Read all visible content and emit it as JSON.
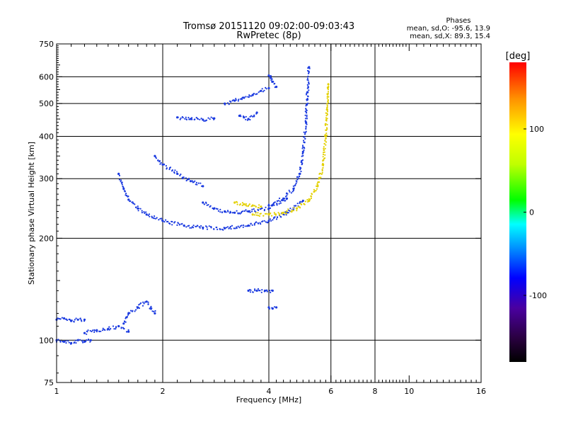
{
  "chart_data": {
    "type": "scatter",
    "title": "Tromsø 20151120 09:02:00-09:03:43",
    "subtitle": "RwPretec (8p)",
    "xlabel": "Frequency [MHz]",
    "ylabel": "Stationary phase Virtual Height [km]",
    "xscale": "log",
    "yscale": "log",
    "xlim": [
      1,
      16
    ],
    "ylim": [
      75,
      750
    ],
    "xticks": [
      1,
      2,
      4,
      6,
      8,
      10,
      16
    ],
    "xtick_labels": [
      "1",
      "2",
      "4",
      "6",
      "8",
      "10",
      "16"
    ],
    "yticks": [
      75,
      100,
      200,
      300,
      400,
      500,
      600,
      750
    ],
    "ytick_labels": [
      "75",
      "100",
      "200",
      "300",
      "400",
      "500",
      "600",
      "750"
    ],
    "grid": true,
    "grid_x": [
      1,
      2,
      4,
      6,
      8,
      16
    ],
    "grid_y": [
      100,
      200,
      300,
      400,
      500,
      600
    ],
    "phase_note": {
      "title": "Phases",
      "line1": "mean, sd,O: -95.6, 13.9",
      "line2": "mean, sd,X:  89.3, 15.4"
    },
    "colorbar": {
      "label": "[deg]",
      "range": [
        -180,
        180
      ],
      "ticks": [
        -100,
        0,
        100
      ],
      "tick_labels": [
        "-100",
        "0",
        "100"
      ]
    },
    "series": [
      {
        "name": "O",
        "color": "#1a3ae0",
        "phase_mean": -95.6,
        "traces": [
          {
            "x": [
              1.0,
              1.05,
              1.1,
              1.15,
              1.2,
              1.25
            ],
            "y": [
              100,
              99,
              98,
              100,
              99,
              100
            ]
          },
          {
            "x": [
              1.0,
              1.05,
              1.1,
              1.15,
              1.2
            ],
            "y": [
              115,
              116,
              114,
              115,
              115
            ]
          },
          {
            "x": [
              1.2,
              1.3,
              1.4,
              1.5,
              1.6
            ],
            "y": [
              105,
              107,
              108,
              110,
              106
            ]
          },
          {
            "x": [
              1.55,
              1.6,
              1.7,
              1.8,
              1.9
            ],
            "y": [
              112,
              120,
              125,
              130,
              120
            ]
          },
          {
            "x": [
              1.5,
              1.55,
              1.6,
              1.7,
              1.8,
              2.0,
              2.3,
              2.6,
              3.0,
              3.5,
              4.0,
              4.5,
              5.0
            ],
            "y": [
              310,
              280,
              260,
              245,
              235,
              225,
              218,
              215,
              214,
              218,
              225,
              238,
              258
            ]
          },
          {
            "x": [
              1.9,
              2.0,
              2.2,
              2.4,
              2.6
            ],
            "y": [
              350,
              330,
              310,
              295,
              285
            ]
          },
          {
            "x": [
              2.6,
              2.8,
              3.0,
              3.2,
              3.5,
              4.0,
              4.5
            ],
            "y": [
              255,
              245,
              240,
              238,
              240,
              245,
              262
            ]
          },
          {
            "x": [
              4.0,
              4.4,
              4.7,
              4.9,
              5.0,
              5.1,
              5.15,
              5.2
            ],
            "y": [
              250,
              262,
              280,
              310,
              360,
              440,
              540,
              640
            ]
          },
          {
            "x": [
              3.0,
              3.2,
              3.4,
              3.6,
              3.8,
              4.0
            ],
            "y": [
              500,
              510,
              520,
              530,
              545,
              555
            ]
          },
          {
            "x": [
              3.3,
              3.4,
              3.5,
              3.7
            ],
            "y": [
              460,
              455,
              450,
              470
            ]
          },
          {
            "x": [
              2.2,
              2.4,
              2.6,
              2.8
            ],
            "y": [
              455,
              450,
              448,
              452
            ]
          },
          {
            "x": [
              4.0,
              4.05,
              4.1,
              4.2
            ],
            "y": [
              605,
              595,
              580,
              560
            ]
          },
          {
            "x": [
              3.5,
              3.7,
              3.9,
              4.1
            ],
            "y": [
              140,
              140,
              140,
              140
            ]
          },
          {
            "x": [
              4.0,
              4.1,
              4.2
            ],
            "y": [
              125,
              124,
              125
            ]
          }
        ]
      },
      {
        "name": "X",
        "color": "#e3d000",
        "phase_mean": 89.3,
        "traces": [
          {
            "x": [
              3.6,
              4.0,
              4.4,
              4.8,
              5.2,
              5.5,
              5.7,
              5.8,
              5.85,
              5.9
            ],
            "y": [
              235,
              235,
              238,
              245,
              258,
              285,
              330,
              400,
              480,
              570
            ]
          },
          {
            "x": [
              3.2,
              3.4,
              3.6,
              3.8
            ],
            "y": [
              255,
              252,
              250,
              248
            ]
          }
        ]
      }
    ]
  }
}
